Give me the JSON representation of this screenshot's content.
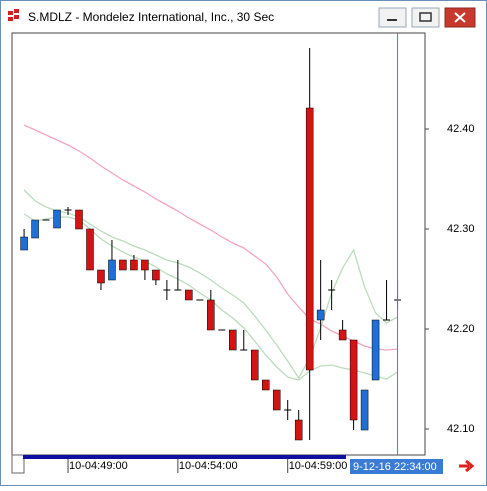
{
  "window_title": "S.MDLZ - Mondelez International, Inc., 30 Sec",
  "chart_data": {
    "type": "candlestick",
    "open": [
      42.279,
      42.291,
      42.309,
      42.301,
      42.319,
      42.319,
      42.3,
      42.259,
      42.249,
      42.269,
      42.269,
      42.269,
      42.259,
      42.239,
      42.239,
      42.239,
      42.229,
      42.229,
      42.199,
      42.199,
      42.179,
      42.179,
      42.149,
      42.139,
      42.119,
      42.109,
      42.421,
      42.209,
      42.239,
      42.199,
      42.189,
      42.099,
      42.149,
      42.209,
      42.229
    ],
    "high": [
      42.3,
      42.309,
      42.309,
      42.319,
      42.322,
      42.319,
      42.3,
      42.259,
      42.289,
      42.269,
      42.274,
      42.269,
      42.259,
      42.249,
      42.269,
      42.239,
      42.229,
      42.239,
      42.199,
      42.199,
      42.199,
      42.179,
      42.149,
      42.139,
      42.129,
      42.119,
      42.481,
      42.269,
      42.249,
      42.209,
      42.189,
      42.139,
      42.209,
      42.249,
      42.249
    ],
    "low": [
      42.279,
      42.291,
      42.309,
      42.301,
      42.314,
      42.3,
      42.259,
      42.239,
      42.249,
      42.259,
      42.259,
      42.249,
      42.244,
      42.229,
      42.239,
      42.229,
      42.229,
      42.199,
      42.199,
      42.179,
      42.179,
      42.149,
      42.139,
      42.119,
      42.109,
      42.089,
      42.089,
      42.189,
      42.219,
      42.189,
      42.099,
      42.099,
      42.149,
      42.209,
      42.219
    ],
    "close": [
      42.292,
      42.309,
      42.309,
      42.319,
      42.319,
      42.3,
      42.259,
      42.246,
      42.269,
      42.259,
      42.259,
      42.259,
      42.249,
      42.239,
      42.239,
      42.229,
      42.229,
      42.199,
      42.199,
      42.179,
      42.179,
      42.149,
      42.139,
      42.119,
      42.119,
      42.089,
      42.159,
      42.219,
      42.239,
      42.189,
      42.109,
      42.139,
      42.209,
      42.209,
      42.229
    ],
    "up_color": "#1f6fd6",
    "down_color": "#d41414",
    "overlays": [
      {
        "color": "#f2a6bd",
        "values": [
          42.404,
          42.399,
          42.394,
          42.389,
          42.384,
          42.378,
          42.371,
          42.363,
          42.356,
          42.349,
          42.343,
          42.337,
          42.33,
          42.324,
          42.318,
          42.311,
          42.305,
          42.299,
          42.292,
          42.286,
          42.281,
          42.273,
          42.265,
          42.252,
          42.235,
          42.222,
          42.21,
          42.205,
          42.198,
          42.193,
          42.188,
          42.183,
          42.18,
          42.179,
          42.18
        ]
      },
      {
        "color": "#bcdcbc",
        "values": [
          42.339,
          42.328,
          42.322,
          42.318,
          42.316,
          42.312,
          42.305,
          42.298,
          42.292,
          42.288,
          42.283,
          42.279,
          42.274,
          42.269,
          42.266,
          42.262,
          42.256,
          42.249,
          42.241,
          42.234,
          42.226,
          42.213,
          42.199,
          42.184,
          42.168,
          42.151,
          42.171,
          42.201,
          42.236,
          42.261,
          42.279,
          42.242,
          42.216,
          42.206,
          42.212
        ]
      },
      {
        "color": "#bcdcbc",
        "values": [
          42.315,
          42.308,
          42.31,
          42.312,
          42.312,
          42.309,
          42.3,
          42.29,
          42.283,
          42.277,
          42.272,
          42.268,
          42.262,
          42.255,
          42.25,
          42.244,
          42.236,
          42.229,
          42.219,
          42.211,
          42.201,
          42.188,
          42.174,
          42.162,
          42.152,
          42.149,
          42.158,
          42.163,
          42.164,
          42.161,
          42.159,
          42.156,
          42.153,
          42.15,
          42.157
        ]
      }
    ],
    "xlim": [
      -1.1,
      36.5
    ],
    "xticks": [
      {
        "value": 4,
        "label": "10-04:49:00"
      },
      {
        "value": 14,
        "label": "10-04:54:00"
      },
      {
        "value": 24,
        "label": "10-04:59:00"
      }
    ],
    "ylim": [
      42.074,
      42.496
    ],
    "yticks": [
      {
        "value": 42.1,
        "label": "42.10"
      },
      {
        "value": 42.2,
        "label": "42.20"
      },
      {
        "value": 42.3,
        "label": "42.30"
      },
      {
        "value": 42.4,
        "label": "42.40"
      }
    ],
    "cursor": {
      "value": 34,
      "label": "9-12-16 22:34:00",
      "color": "#3a8fb0"
    }
  }
}
